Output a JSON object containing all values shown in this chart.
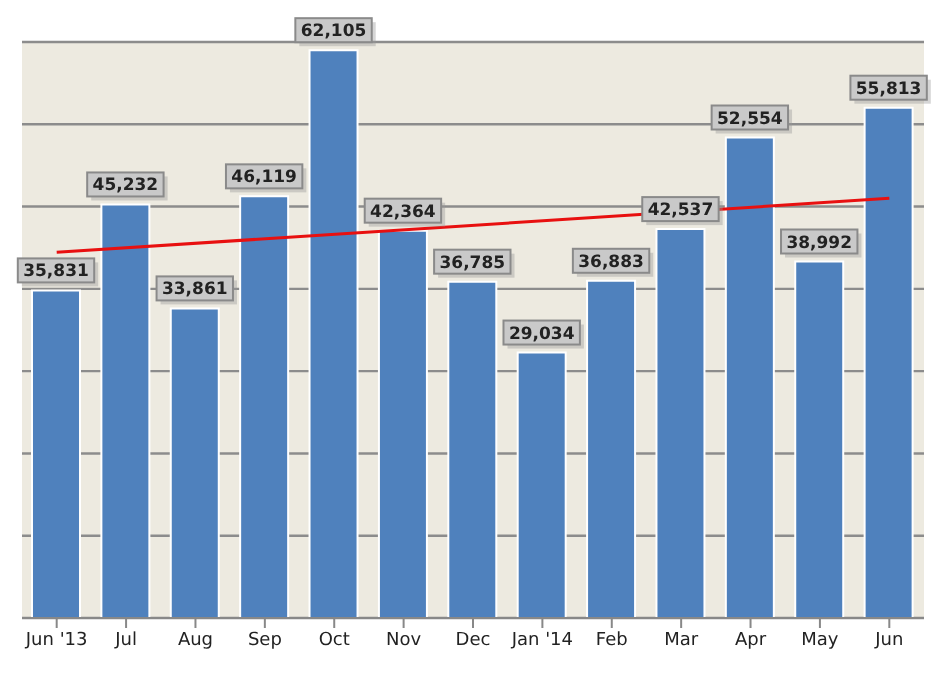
{
  "chart_data": {
    "type": "bar",
    "categories": [
      "Jun '13",
      "Jul",
      "Aug",
      "Sep",
      "Oct",
      "Nov",
      "Dec",
      "Jan '14",
      "Feb",
      "Mar",
      "Apr",
      "May",
      "Jun"
    ],
    "series": [
      {
        "color": "#4f81bd",
        "values": [
          35831,
          45232,
          33861,
          46119,
          62105,
          42364,
          36785,
          29034,
          36883,
          42537,
          52554,
          38992,
          55813
        ],
        "value_labels": [
          "35,831",
          "45,232",
          "33,861",
          "46,119",
          "62,105",
          "42,364",
          "36,785",
          "29,034",
          "36,883",
          "42,537",
          "52,554",
          "38,992",
          "55,813"
        ]
      },
      {
        "type": "line",
        "color": "#e81010",
        "x": [
          "Jun '13",
          "Jun"
        ],
        "values": [
          40000,
          45900
        ]
      }
    ],
    "tick_labels": "x",
    "grid": "y",
    "legend": false,
    "marker": "none"
  }
}
